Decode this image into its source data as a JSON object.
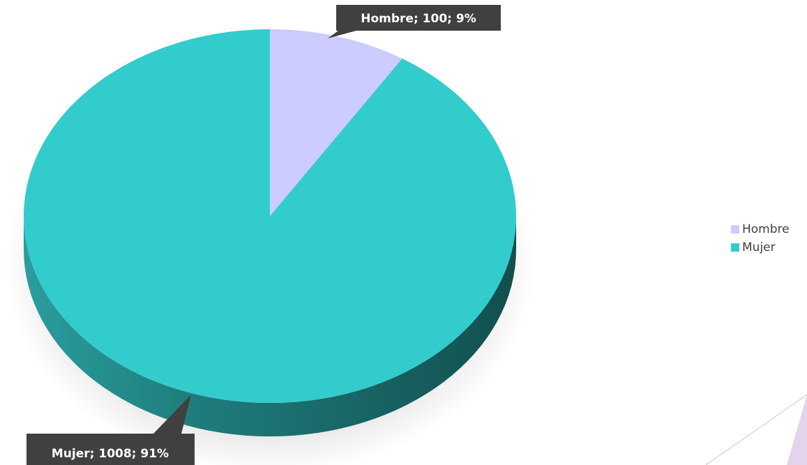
{
  "chart_data": {
    "type": "pie",
    "title": "",
    "categories": [
      "Hombre",
      "Mujer"
    ],
    "values": [
      100,
      1008
    ],
    "percentages": [
      "9%",
      "91%"
    ],
    "data_labels": [
      "Hombre; 100; 9%",
      "Mujer; 1008; 91%"
    ],
    "colors": [
      "#ccccff",
      "#33cccc"
    ],
    "style": "3d",
    "legend": {
      "position": "right",
      "entries": [
        "Hombre",
        "Mujer"
      ]
    }
  }
}
